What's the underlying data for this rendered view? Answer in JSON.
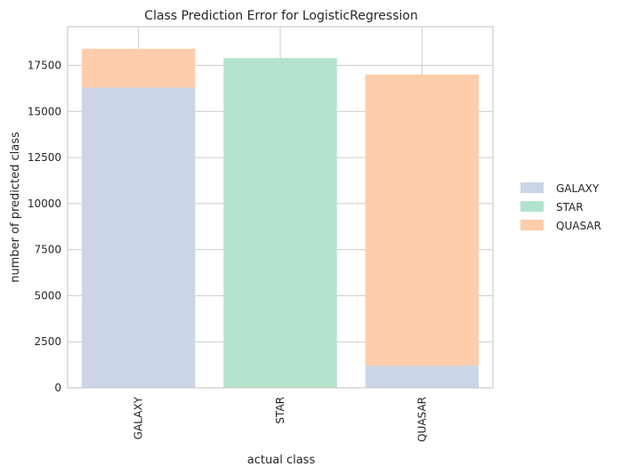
{
  "chart_data": {
    "type": "bar",
    "stacked": true,
    "title": "Class Prediction Error for LogisticRegression",
    "xlabel": "actual class",
    "ylabel": "number of predicted class",
    "categories": [
      "GALAXY",
      "STAR",
      "QUASAR"
    ],
    "series": [
      {
        "name": "GALAXY",
        "color": "#cbd5e7",
        "values": [
          16300,
          0,
          1200
        ]
      },
      {
        "name": "STAR",
        "color": "#b3e2cd",
        "values": [
          0,
          17900,
          0
        ]
      },
      {
        "name": "QUASAR",
        "color": "#fdcdac",
        "values": [
          2100,
          0,
          15800
        ]
      }
    ],
    "yticks": [
      0,
      2500,
      5000,
      7500,
      10000,
      12500,
      15000,
      17500
    ],
    "ylim": [
      0,
      19600
    ],
    "grid": true,
    "legend_position": "right"
  }
}
